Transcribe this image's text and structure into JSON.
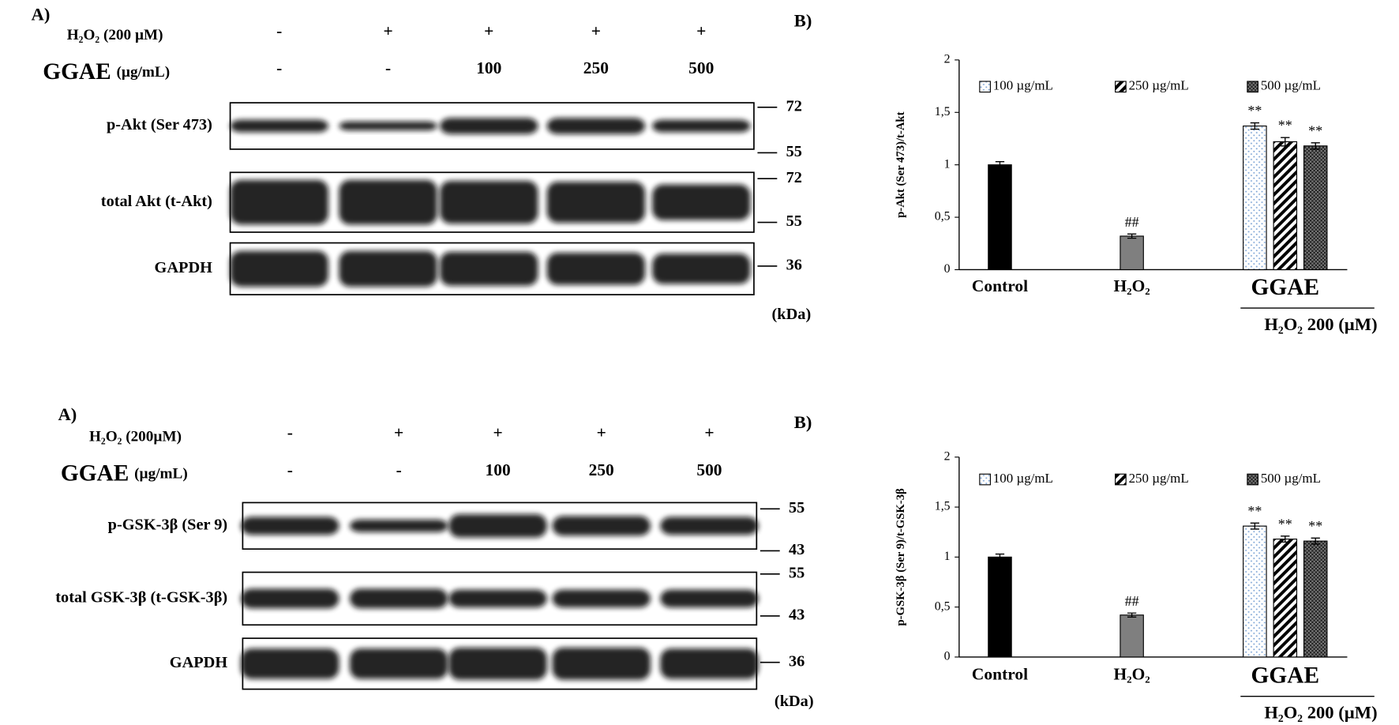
{
  "blots": [
    {
      "panel": "A)",
      "conditions": [
        {
          "label": "H₂O₂ (200 µM)",
          "lanes": [
            "-",
            "+",
            "+",
            "+",
            "+"
          ]
        },
        {
          "label": "GGAE",
          "unit": "(µg/mL)",
          "lanes": [
            "-",
            "-",
            "100",
            "250",
            "500"
          ]
        }
      ],
      "rows": [
        {
          "label": "p-Akt (Ser 473)",
          "markers": [
            72,
            55
          ]
        },
        {
          "label": "total Akt (t-Akt)",
          "markers": [
            72,
            55
          ]
        },
        {
          "label": "GAPDH",
          "markers": [
            36
          ]
        }
      ],
      "unit": "(kDa)"
    },
    {
      "panel": "A)",
      "conditions": [
        {
          "label": "H₂O₂ (200µM)",
          "lanes": [
            "-",
            "+",
            "+",
            "+",
            "+"
          ]
        },
        {
          "label": "GGAE",
          "unit": "(µg/mL)",
          "lanes": [
            "-",
            "-",
            "100",
            "250",
            "500"
          ]
        }
      ],
      "rows": [
        {
          "label": "p-GSK-3β (Ser 9)",
          "markers": [
            55,
            43
          ]
        },
        {
          "label": "total GSK-3β (t-GSK-3β)",
          "markers": [
            55,
            43
          ]
        },
        {
          "label": "GAPDH",
          "markers": [
            36
          ]
        }
      ],
      "unit": "(kDa)"
    }
  ],
  "chart_data": [
    {
      "type": "bar",
      "panel": "B)",
      "y_label": "p-Akt (Ser 473)/t-Akt",
      "ylim": [
        0,
        2
      ],
      "yticks": [
        0,
        {
          "value": 0.5,
          "label": "0,5"
        },
        1,
        {
          "value": 1.5,
          "label": "1,5"
        },
        2
      ],
      "categories": [
        "Control",
        "H₂O₂",
        "GGAE"
      ],
      "values": [
        1.0,
        0.32,
        null
      ],
      "errors": [
        0.03,
        0.02,
        null
      ],
      "colors": [
        "#000000",
        "#7f7f7f",
        null
      ],
      "annotations": [
        null,
        "##",
        null
      ],
      "group_label": "H₂O₂ 200 (µM)",
      "series": [
        {
          "name": "100 µg/mL",
          "pattern": "dots",
          "values": [
            null,
            null,
            1.37
          ],
          "errors": [
            null,
            null,
            0.03
          ],
          "annotations": [
            null,
            null,
            "**"
          ]
        },
        {
          "name": "250 µg/mL",
          "pattern": "stripes",
          "values": [
            null,
            null,
            1.22
          ],
          "errors": [
            null,
            null,
            0.04
          ],
          "annotations": [
            null,
            null,
            "**"
          ]
        },
        {
          "name": "500 µg/mL",
          "pattern": "checks",
          "values": [
            null,
            null,
            1.18
          ],
          "errors": [
            null,
            null,
            0.03
          ],
          "annotations": [
            null,
            null,
            "**"
          ]
        }
      ]
    },
    {
      "type": "bar",
      "panel": "B)",
      "y_label": "p-GSK-3β (Ser 9)/t-GSK-3β",
      "ylim": [
        0,
        2
      ],
      "yticks": [
        0,
        {
          "value": 0.5,
          "label": "0,5"
        },
        1,
        {
          "value": 1.5,
          "label": "1,5"
        },
        2
      ],
      "categories": [
        "Control",
        "H₂O₂",
        "GGAE"
      ],
      "values": [
        1.0,
        0.42,
        null
      ],
      "errors": [
        0.03,
        0.02,
        null
      ],
      "colors": [
        "#000000",
        "#7f7f7f",
        null
      ],
      "annotations": [
        null,
        "##",
        null
      ],
      "group_label": "H₂O₂ 200 (µM)",
      "series": [
        {
          "name": "100 µg/mL",
          "pattern": "dots",
          "values": [
            null,
            null,
            1.31
          ],
          "errors": [
            null,
            null,
            0.03
          ],
          "annotations": [
            null,
            null,
            "**"
          ]
        },
        {
          "name": "250 µg/mL",
          "pattern": "stripes",
          "values": [
            null,
            null,
            1.18
          ],
          "errors": [
            null,
            null,
            0.03
          ],
          "annotations": [
            null,
            null,
            "**"
          ]
        },
        {
          "name": "500 µg/mL",
          "pattern": "checks",
          "values": [
            null,
            null,
            1.16
          ],
          "errors": [
            null,
            null,
            0.03
          ],
          "annotations": [
            null,
            null,
            "**"
          ]
        }
      ]
    }
  ]
}
